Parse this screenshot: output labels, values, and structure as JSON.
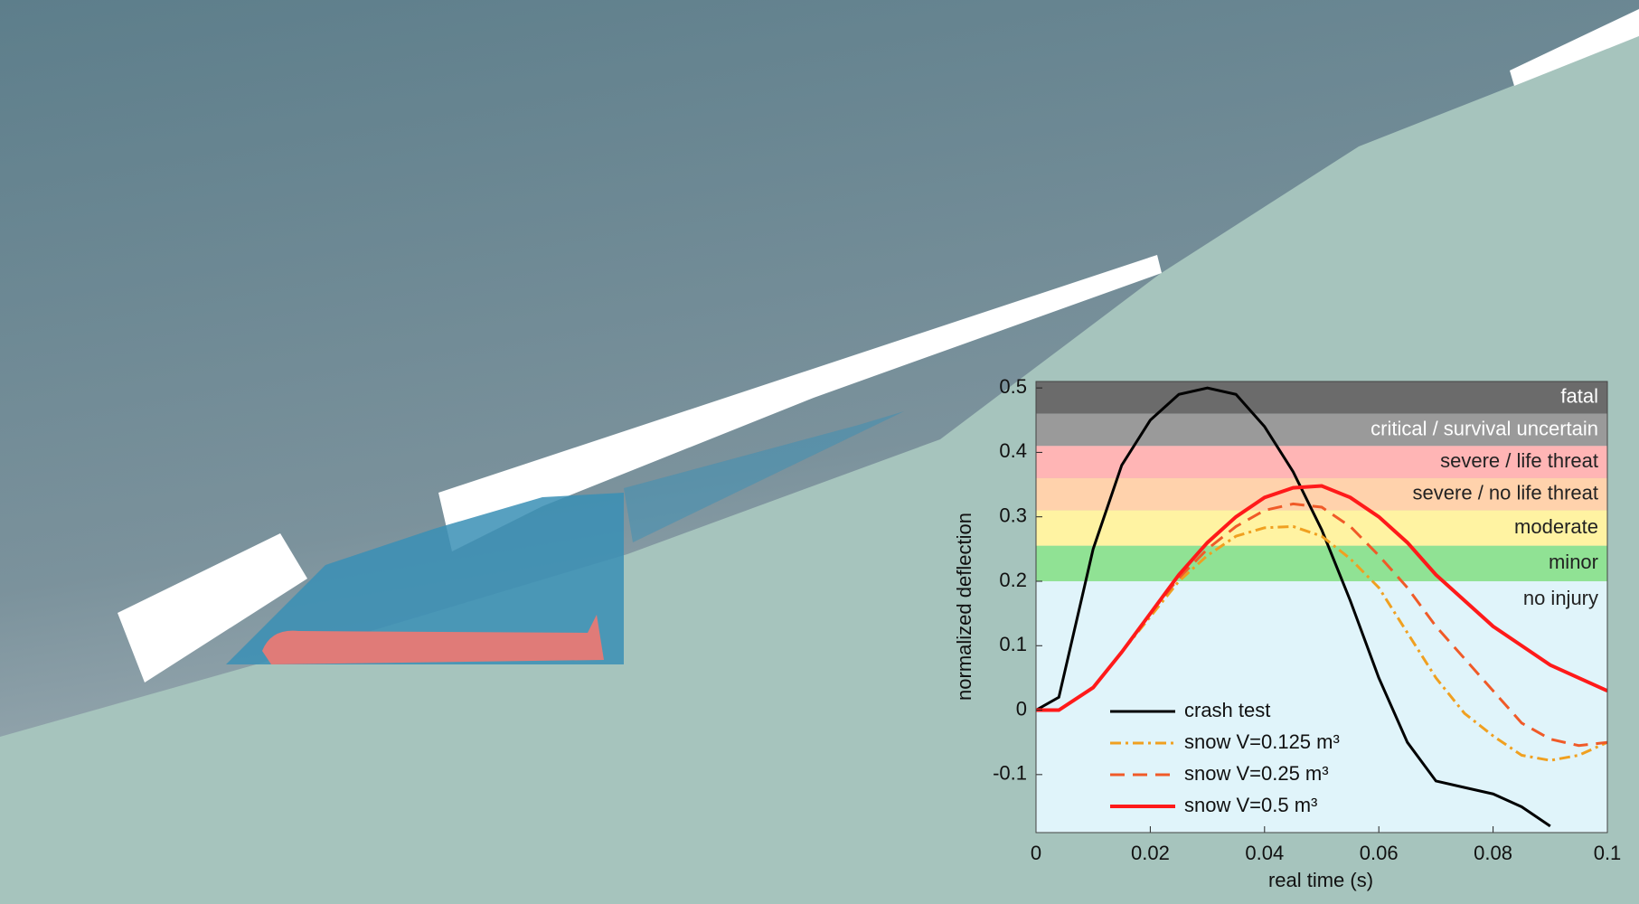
{
  "chart_data": {
    "type": "line",
    "x_label": "real time (s)",
    "y_label": "normalized deflection",
    "x": [
      0,
      0.004,
      0.01,
      0.015,
      0.02,
      0.025,
      0.03,
      0.035,
      0.04,
      0.045,
      0.05,
      0.055,
      0.06,
      0.065,
      0.07,
      0.075,
      0.08,
      0.085,
      0.09,
      0.095,
      0.1
    ],
    "series": [
      {
        "name": "crash test",
        "color": "#000000",
        "style": "solid",
        "values": [
          0,
          0.02,
          0.25,
          0.38,
          0.45,
          0.49,
          0.5,
          0.49,
          0.44,
          0.37,
          0.28,
          0.17,
          0.05,
          -0.05,
          -0.11,
          -0.12,
          -0.13,
          -0.15,
          -0.18,
          null,
          null
        ]
      },
      {
        "name": "snow V=0.125 m³",
        "color": "#f0a020",
        "style": "dashdot",
        "values": [
          0,
          0,
          0.035,
          0.09,
          0.145,
          0.2,
          0.24,
          0.27,
          0.283,
          0.285,
          0.27,
          0.235,
          0.19,
          0.12,
          0.05,
          -0.005,
          -0.04,
          -0.07,
          -0.078,
          -0.07,
          -0.05
        ]
      },
      {
        "name": "snow V=0.25 m³",
        "color": "#f05a28",
        "style": "dashed",
        "values": [
          0,
          0,
          0.035,
          0.09,
          0.15,
          0.205,
          0.25,
          0.285,
          0.31,
          0.32,
          0.315,
          0.285,
          0.24,
          0.19,
          0.13,
          0.08,
          0.03,
          -0.02,
          -0.045,
          -0.055,
          -0.05
        ]
      },
      {
        "name": "snow V=0.5 m³",
        "color": "#ff1a1a",
        "style": "solid",
        "values": [
          0,
          0,
          0.035,
          0.09,
          0.15,
          0.21,
          0.26,
          0.3,
          0.33,
          0.345,
          0.348,
          0.33,
          0.3,
          0.26,
          0.21,
          0.17,
          0.13,
          0.1,
          0.07,
          0.05,
          0.03
        ]
      }
    ],
    "bands": [
      {
        "label": "fatal",
        "from": 0.46,
        "to": 0.51,
        "color": "#6b6b6b"
      },
      {
        "label": "critical / survival uncertain",
        "from": 0.41,
        "to": 0.46,
        "color": "#9a9a9a"
      },
      {
        "label": "severe / life threat",
        "from": 0.36,
        "to": 0.41,
        "color": "#ffb5b5"
      },
      {
        "label": "severe / no life threat",
        "from": 0.31,
        "to": 0.36,
        "color": "#ffd2ac"
      },
      {
        "label": "moderate",
        "from": 0.255,
        "to": 0.31,
        "color": "#fff3a2"
      },
      {
        "label": "minor",
        "from": 0.2,
        "to": 0.255,
        "color": "#90e294"
      },
      {
        "label": "no injury",
        "from": -0.19,
        "to": 0.2,
        "color": "#e0f4fa"
      }
    ],
    "xlim": [
      0,
      0.1
    ],
    "ylim": [
      -0.19,
      0.51
    ],
    "xticks": [
      0,
      0.02,
      0.04,
      0.06,
      0.08,
      0.1
    ],
    "yticks": [
      -0.1,
      0,
      0.1,
      0.2,
      0.3,
      0.4,
      0.5
    ]
  }
}
